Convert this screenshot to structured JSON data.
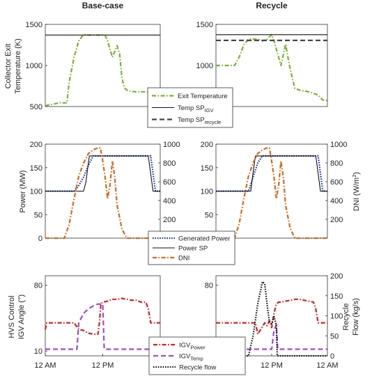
{
  "chart_data": [
    {
      "id": "temp",
      "type": "line",
      "titles": [
        "Base-case",
        "Recycle"
      ],
      "ylabel": [
        "Collector Exit",
        "Temperature (K)"
      ],
      "ylim": [
        500,
        1500
      ],
      "yticks": [
        500,
        1000,
        1500
      ],
      "xlim": [
        0,
        24
      ],
      "legend": [
        {
          "key": "exit",
          "label": "Exit Temperature",
          "color": "#7ab030",
          "style": "dashdot"
        },
        {
          "key": "spigv",
          "label": "Temp SP",
          "sub": "IGV",
          "color": "#111111",
          "style": "solid"
        },
        {
          "key": "sprec",
          "label": "Temp SP",
          "sub": "recycle",
          "color": "#444444",
          "style": "dashed"
        }
      ],
      "panels": [
        {
          "series": [
            {
              "key": "exit",
              "x": [
                0,
                3,
                4.5,
                5,
                6,
                7,
                8,
                9,
                10,
                11,
                12,
                12.5,
                13,
                14,
                15,
                15.5,
                16,
                16.5,
                17,
                17.5,
                18,
                19,
                20,
                21,
                22,
                23,
                24
              ],
              "y": [
                510,
                545,
                545,
                800,
                1100,
                1300,
                1375,
                1370,
                1370,
                1370,
                1370,
                1365,
                1300,
                1100,
                1240,
                1150,
                850,
                730,
                700,
                690,
                685,
                680,
                680,
                680,
                680,
                680,
                680
              ]
            },
            {
              "key": "spigv",
              "x": [
                0,
                24
              ],
              "y": [
                1370,
                1370
              ]
            }
          ]
        },
        {
          "series": [
            {
              "key": "exit",
              "x": [
                0,
                2,
                4,
                5,
                6,
                7,
                8,
                9,
                10,
                11,
                12,
                12.5,
                13,
                14,
                15,
                15.5,
                16,
                17,
                18,
                19,
                20,
                21,
                22,
                23,
                24
              ],
              "y": [
                1000,
                1000,
                1000,
                1100,
                1250,
                1320,
                1320,
                1320,
                1300,
                1320,
                1375,
                1300,
                1200,
                1000,
                1260,
                1100,
                950,
                720,
                700,
                690,
                680,
                660,
                640,
                580,
                570
              ]
            },
            {
              "key": "spigv",
              "x": [
                0,
                24
              ],
              "y": [
                1375,
                1375
              ]
            },
            {
              "key": "sprec",
              "x": [
                0,
                24
              ],
              "y": [
                1305,
                1305
              ]
            }
          ]
        }
      ]
    },
    {
      "id": "power",
      "type": "line",
      "ylabel_left": "Power (MW)",
      "ylabel_right": "DNI (W/m",
      "ylabel_right_sup": "2",
      "ylabel_right_close": ")",
      "ylim_left": [
        0,
        200
      ],
      "yticks_left": [
        0,
        50,
        100,
        150,
        200
      ],
      "ylim_right": [
        0,
        1000
      ],
      "yticks_right": [
        200,
        400,
        600,
        800,
        1000
      ],
      "xlim": [
        0,
        24
      ],
      "legend": [
        {
          "key": "gen",
          "label": "Generated Power",
          "color": "#1a2fa0",
          "style": "dotted"
        },
        {
          "key": "sp",
          "label": "Power SP",
          "color": "#111111",
          "style": "solid"
        },
        {
          "key": "dni",
          "label": "DNI",
          "color": "#d2691e",
          "style": "dashdot"
        }
      ],
      "panels": [
        {
          "series": [
            {
              "key": "gen",
              "axis": "left",
              "x": [
                0,
                6,
                7,
                8,
                9,
                10,
                21,
                22,
                23,
                24
              ],
              "y": [
                100,
                100,
                112,
                130,
                155,
                175,
                175,
                175,
                100,
                100
              ]
            },
            {
              "key": "sp",
              "axis": "left",
              "x": [
                0,
                8,
                8.5,
                9,
                9.2,
                21.5,
                22.5,
                24
              ],
              "y": [
                100,
                100,
                120,
                160,
                175,
                175,
                100,
                100
              ]
            },
            {
              "key": "dni",
              "axis": "right",
              "x": [
                0,
                4,
                5,
                6,
                7,
                8,
                9,
                10,
                11,
                11.5,
                12,
                12.5,
                13,
                13.5,
                14,
                14.5,
                15,
                16,
                17,
                18,
                24
              ],
              "y": [
                0,
                0,
                150,
                420,
                660,
                800,
                900,
                940,
                960,
                960,
                820,
                650,
                420,
                560,
                820,
                650,
                350,
                100,
                0,
                0,
                0
              ]
            }
          ]
        },
        {
          "series": [
            {
              "key": "gen",
              "axis": "left",
              "x": [
                0,
                7,
                8,
                9,
                10,
                21,
                22,
                23,
                24
              ],
              "y": [
                100,
                100,
                130,
                160,
                175,
                175,
                175,
                100,
                100
              ]
            },
            {
              "key": "sp",
              "axis": "left",
              "x": [
                0,
                7.5,
                8,
                8.5,
                21.5,
                22.5,
                24
              ],
              "y": [
                100,
                100,
                140,
                175,
                175,
                100,
                100
              ]
            },
            {
              "key": "dni",
              "axis": "right",
              "x": [
                0,
                4,
                5,
                6,
                7,
                8,
                9,
                10,
                11,
                11.5,
                12,
                12.5,
                13,
                13.5,
                14,
                14.5,
                15,
                16,
                17,
                18,
                24
              ],
              "y": [
                0,
                0,
                150,
                420,
                660,
                800,
                900,
                940,
                960,
                960,
                820,
                650,
                420,
                560,
                820,
                650,
                350,
                100,
                0,
                0,
                0
              ]
            }
          ]
        }
      ]
    },
    {
      "id": "igv",
      "type": "line",
      "ylabel_left": [
        "HVS Control",
        "IGV Angle (°)"
      ],
      "ylabel_right": [
        "Recycle",
        "Flow (kg/s)"
      ],
      "ylim_left": [
        5,
        90
      ],
      "yticks_left": [
        10,
        80
      ],
      "ylim_right": [
        0,
        200
      ],
      "yticks_right": [
        0,
        50,
        100,
        150,
        200
      ],
      "xlim": [
        0,
        24
      ],
      "xticks": [
        0,
        12,
        24
      ],
      "xticklabels": [
        "12 AM",
        "12 PM",
        "12 AM"
      ],
      "legend": [
        {
          "key": "pow",
          "label": "IGV",
          "sub": "Power",
          "color": "#d62020",
          "style": "dashdot"
        },
        {
          "key": "tmp",
          "label": "IGV",
          "sub": "Temp",
          "color": "#9a4fc8",
          "style": "dashed"
        },
        {
          "key": "rec",
          "label": "Recycle flow",
          "color": "#111111",
          "style": "dotted"
        }
      ],
      "panels": [
        {
          "series": [
            {
              "key": "pow",
              "axis": "left",
              "x": [
                0,
                0.3,
                1,
                3,
                6,
                7,
                8,
                9,
                10,
                11,
                11.3,
                11.6,
                12,
                13,
                14,
                15,
                16,
                17,
                18,
                19,
                20,
                21,
                21.5,
                22,
                22.5,
                24
              ],
              "y": [
                33,
                40,
                40,
                40,
                40,
                33,
                32,
                29,
                28,
                28,
                40,
                60,
                62,
                63,
                65,
                65,
                66,
                65,
                64,
                64,
                62,
                62,
                55,
                40,
                40,
                40
              ]
            },
            {
              "key": "tmp",
              "axis": "left",
              "x": [
                0,
                6,
                6.6,
                7,
                8,
                9,
                10,
                11,
                11.5,
                12,
                12.3,
                12.6,
                24
              ],
              "y": [
                12,
                12,
                12,
                40,
                50,
                55,
                58,
                60,
                60,
                60,
                12,
                12,
                12
              ]
            }
          ]
        },
        {
          "series": [
            {
              "key": "pow",
              "axis": "left",
              "x": [
                0,
                3,
                6,
                8,
                8.5,
                9,
                10,
                10.5,
                11,
                11.5,
                12,
                12.5,
                13,
                13.5,
                14,
                15,
                16,
                17,
                18,
                19,
                20,
                21,
                21.5,
                22,
                22.5,
                24
              ],
              "y": [
                40,
                40,
                40,
                40,
                40,
                28,
                36,
                40,
                37,
                42,
                35,
                50,
                60,
                62,
                62,
                63,
                64,
                65,
                65,
                64,
                63,
                62,
                55,
                40,
                40,
                40
              ]
            },
            {
              "key": "tmp",
              "axis": "left",
              "x": [
                0,
                12,
                12.5,
                13,
                13.3,
                13.6,
                24
              ],
              "y": [
                12,
                12,
                32,
                38,
                12,
                12,
                12
              ]
            },
            {
              "key": "rec",
              "axis": "right",
              "x": [
                0,
                6,
                7,
                8,
                9,
                10,
                10.5,
                11,
                11.5,
                12,
                12.5,
                13,
                13.2,
                24
              ],
              "y": [
                0,
                0,
                0,
                50,
                130,
                185,
                180,
                130,
                85,
                80,
                100,
                75,
                0,
                0
              ]
            }
          ]
        }
      ]
    }
  ]
}
